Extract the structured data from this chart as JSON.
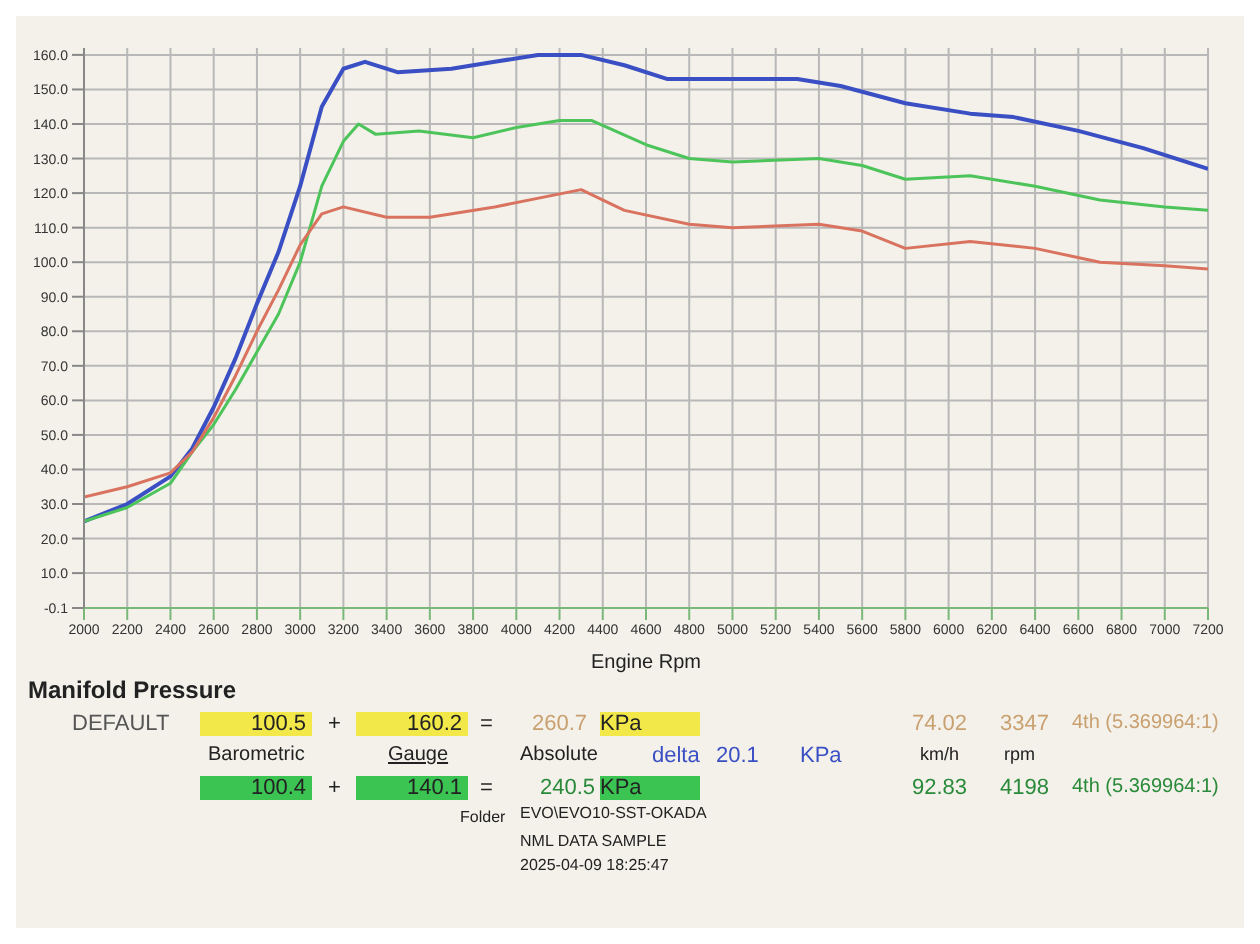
{
  "chart_data": {
    "type": "line",
    "xlabel": "Engine Rpm",
    "series": [
      {
        "color": "#3b4fc4",
        "x": [
          2000,
          2200,
          2400,
          2500,
          2600,
          2700,
          2800,
          2900,
          3000,
          3100,
          3200,
          3300,
          3450,
          3700,
          3900,
          4100,
          4300,
          4500,
          4700,
          5000,
          5300,
          5500,
          5800,
          6100,
          6300,
          6600,
          6900,
          7200
        ],
        "values": [
          25,
          30,
          38,
          46,
          58,
          72,
          88,
          103,
          122,
          145,
          156,
          158,
          155,
          156,
          158,
          160,
          160,
          157,
          153,
          153,
          153,
          151,
          146,
          143,
          142,
          138,
          133,
          127
        ]
      },
      {
        "color": "#4cc45a",
        "x": [
          2000,
          2200,
          2400,
          2500,
          2600,
          2700,
          2800,
          2900,
          3000,
          3100,
          3200,
          3270,
          3350,
          3550,
          3800,
          4000,
          4200,
          4350,
          4600,
          4800,
          5000,
          5400,
          5600,
          5800,
          6100,
          6400,
          6700,
          7000,
          7200
        ],
        "values": [
          25,
          29,
          36,
          45,
          53,
          63,
          74,
          85,
          100,
          122,
          135,
          140,
          137,
          138,
          136,
          139,
          141,
          141,
          134,
          130,
          129,
          130,
          128,
          124,
          125,
          122,
          118,
          116,
          115
        ]
      },
      {
        "color": "#d9735f",
        "x": [
          2000,
          2200,
          2400,
          2500,
          2600,
          2700,
          2800,
          2900,
          3000,
          3100,
          3200,
          3400,
          3600,
          3900,
          4300,
          4500,
          4800,
          5000,
          5400,
          5600,
          5800,
          6100,
          6400,
          6700,
          7000,
          7200
        ],
        "values": [
          32,
          35,
          39,
          45,
          55,
          67,
          80,
          92,
          105,
          114,
          116,
          113,
          113,
          116,
          121,
          115,
          111,
          110,
          111,
          109,
          104,
          106,
          104,
          100,
          99,
          98
        ]
      }
    ],
    "xlim": [
      2000,
      7200
    ],
    "xticks": [
      2000,
      2200,
      2400,
      2600,
      2800,
      3000,
      3200,
      3400,
      3600,
      3800,
      4000,
      4200,
      4400,
      4600,
      4800,
      5000,
      5200,
      5400,
      5600,
      5800,
      6000,
      6200,
      6400,
      6600,
      6800,
      7000,
      7200
    ],
    "ylim": [
      -0.1,
      162
    ],
    "yticks": [
      -0.1,
      {
        "value": 10,
        "label": "10.0"
      },
      {
        "value": 20,
        "label": "20.0"
      },
      {
        "value": 30,
        "label": "30.0"
      },
      {
        "value": 40,
        "label": "40.0"
      },
      {
        "value": 50,
        "label": "50.0"
      },
      {
        "value": 60,
        "label": "60.0"
      },
      {
        "value": 70,
        "label": "70.0"
      },
      {
        "value": 80,
        "label": "80.0"
      },
      {
        "value": 90,
        "label": "90.0"
      },
      {
        "value": 100,
        "label": "100.0"
      },
      {
        "value": 110,
        "label": "110.0"
      },
      {
        "value": 120,
        "label": "120.0"
      },
      {
        "value": 130,
        "label": "130.0"
      },
      {
        "value": 140,
        "label": "140.0"
      },
      {
        "value": 150,
        "label": "150.0"
      },
      {
        "value": 160,
        "label": "160.0"
      }
    ],
    "grid": true,
    "annotations": [
      "Manifold Pressure",
      "DEFAULT",
      "100.5",
      "+",
      "160.2",
      "=",
      "260.7",
      "KPa",
      "Barometric",
      "Gauge",
      "Absolute",
      "delta",
      "20.1",
      "KPa",
      "100.4",
      "+",
      "140.1",
      "=",
      "240.5",
      "KPa",
      "74.02",
      "3347",
      "4th (5.369964:1)",
      "km/h",
      "rpm",
      "92.83",
      "4198",
      "4th (5.369964:1)",
      "Folder",
      "EVO\\EVO10-SST-OKADA",
      "NML DATA SAMPLE",
      "2025-04-09 18:25:47"
    ]
  }
}
